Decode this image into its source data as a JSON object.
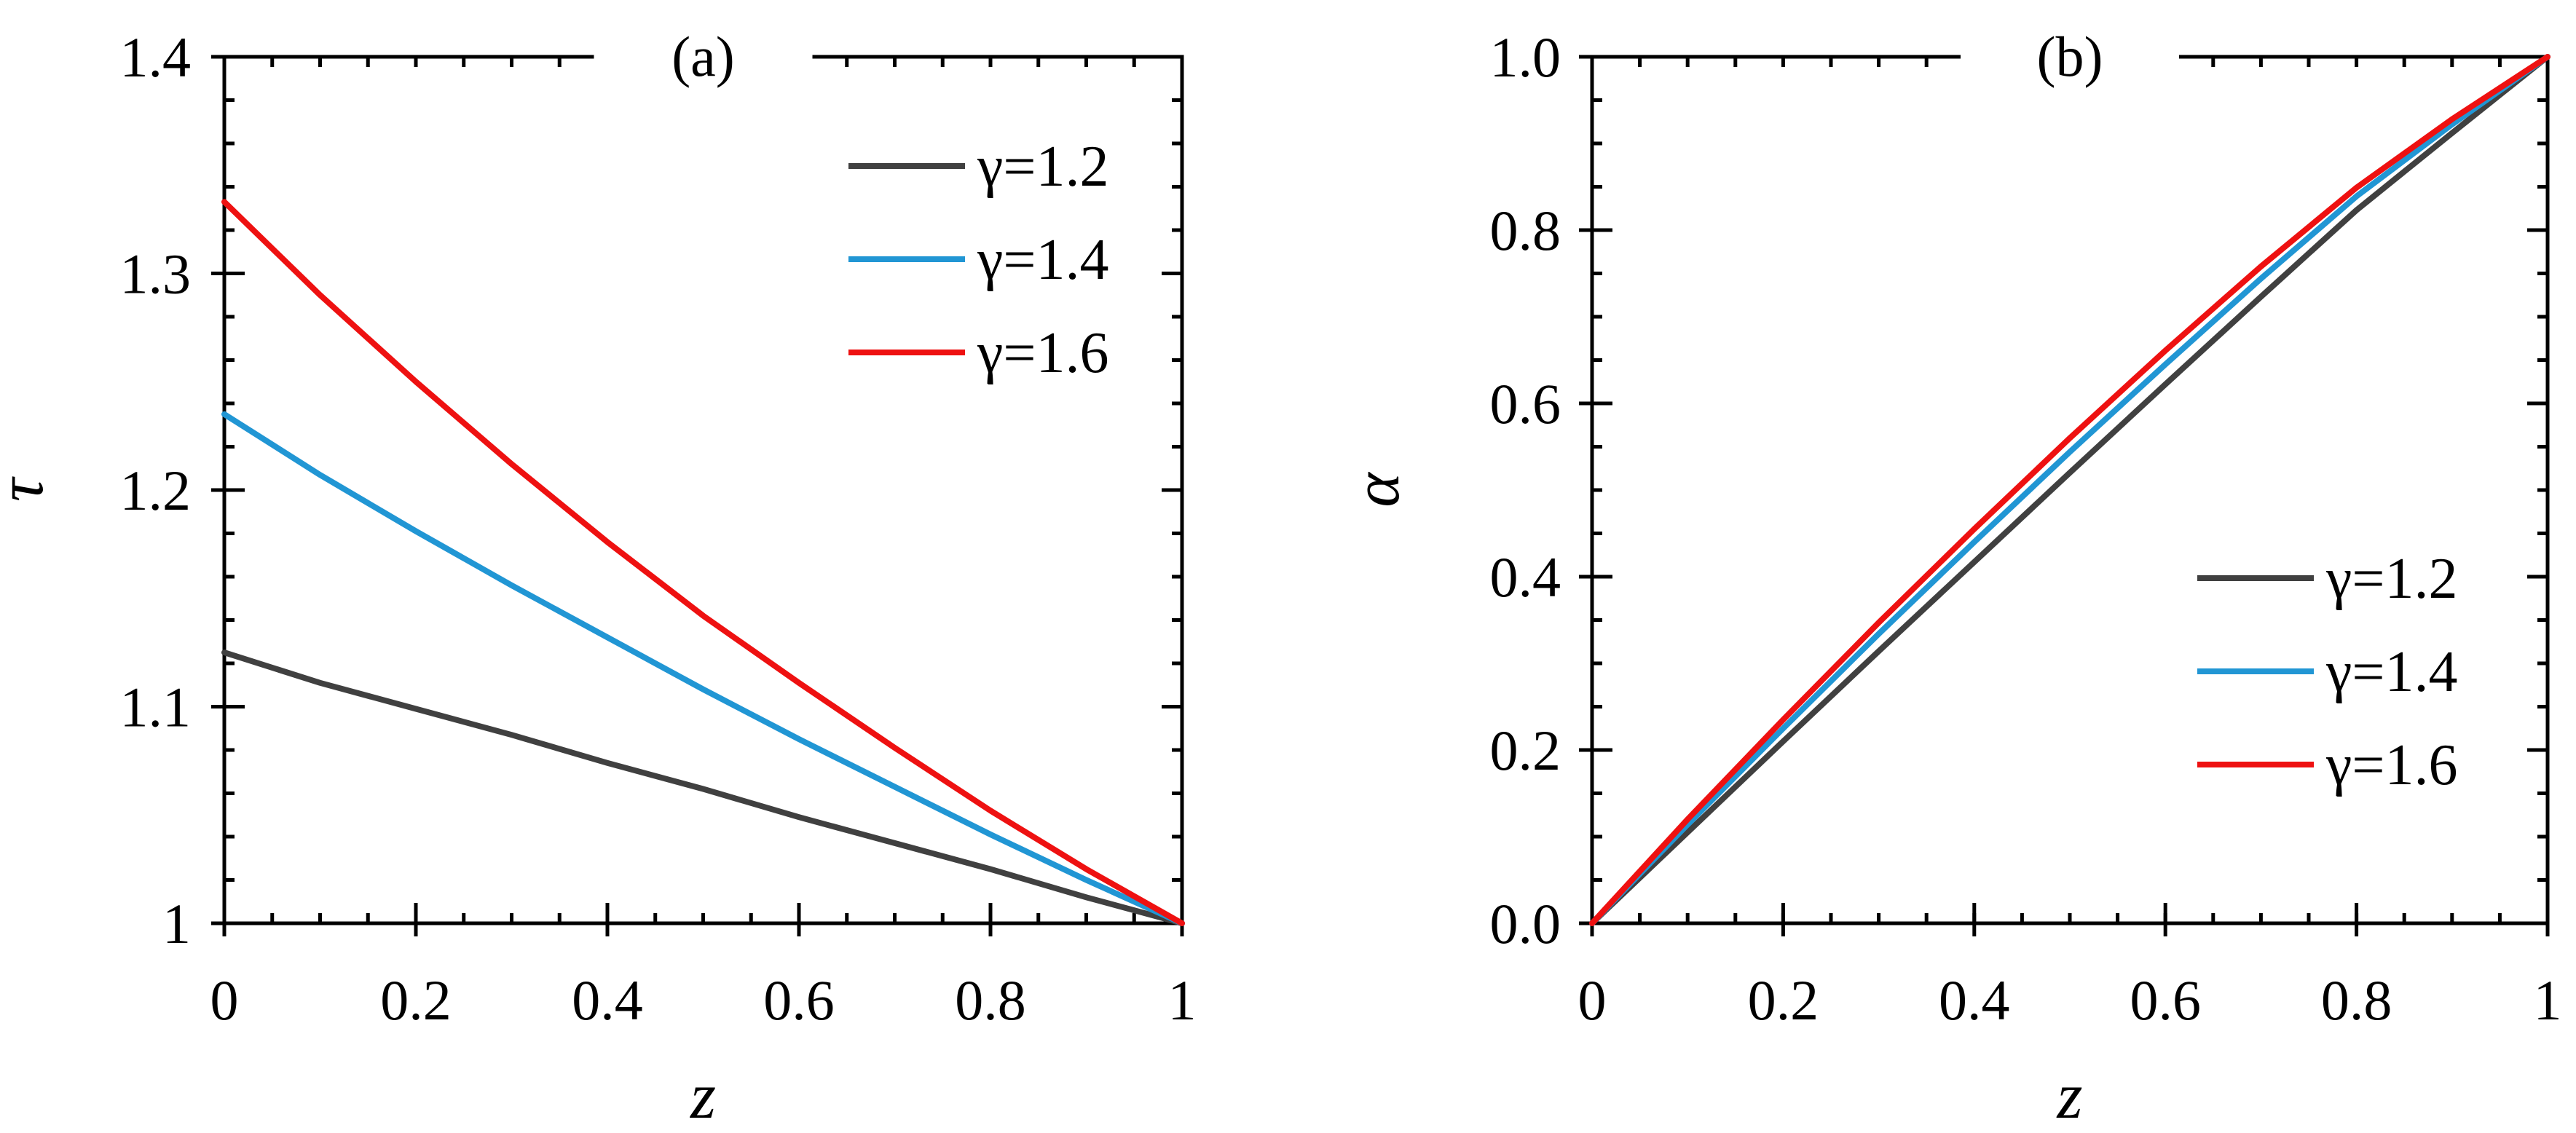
{
  "colors": {
    "gamma_1_2": "#404040",
    "gamma_1_4": "#2196d4",
    "gamma_1_6": "#ee1111",
    "axes": "#000000",
    "background": "#ffffff"
  },
  "chart_data": [
    {
      "type": "line",
      "panel_label": "(a)",
      "xlabel": "z",
      "ylabel": "τ",
      "xlim": [
        0,
        1
      ],
      "ylim": [
        1,
        1.4
      ],
      "x_ticks": [
        "0",
        "0.2",
        "0.4",
        "0.6",
        "0.8",
        "1"
      ],
      "y_ticks": [
        "1",
        "1.1",
        "1.2",
        "1.3",
        "1.4"
      ],
      "legend_position": "top-right",
      "grid": false,
      "series": [
        {
          "name": "γ=1.2",
          "color_key": "gamma_1_2",
          "x": [
            0,
            0.1,
            0.2,
            0.3,
            0.4,
            0.5,
            0.6,
            0.7,
            0.8,
            0.9,
            1
          ],
          "y": [
            1.125,
            1.111,
            1.099,
            1.087,
            1.074,
            1.062,
            1.049,
            1.037,
            1.025,
            1.012,
            1.0
          ]
        },
        {
          "name": "γ=1.4",
          "color_key": "gamma_1_4",
          "x": [
            0,
            0.1,
            0.2,
            0.3,
            0.4,
            0.5,
            0.6,
            0.7,
            0.8,
            0.9,
            1
          ],
          "y": [
            1.235,
            1.207,
            1.181,
            1.156,
            1.132,
            1.108,
            1.085,
            1.063,
            1.041,
            1.02,
            1.0
          ]
        },
        {
          "name": "γ=1.6",
          "color_key": "gamma_1_6",
          "x": [
            0,
            0.1,
            0.2,
            0.3,
            0.4,
            0.5,
            0.6,
            0.7,
            0.8,
            0.9,
            1
          ],
          "y": [
            1.333,
            1.29,
            1.25,
            1.212,
            1.176,
            1.142,
            1.111,
            1.081,
            1.052,
            1.025,
            1.0
          ]
        }
      ]
    },
    {
      "type": "line",
      "panel_label": "(b)",
      "xlabel": "z",
      "ylabel": "α",
      "xlim": [
        0,
        1
      ],
      "ylim": [
        0,
        1
      ],
      "x_ticks": [
        "0",
        "0.2",
        "0.4",
        "0.6",
        "0.8",
        "1"
      ],
      "y_ticks": [
        "0.0",
        "0.2",
        "0.4",
        "0.6",
        "0.8",
        "1.0"
      ],
      "legend_position": "bottom-right",
      "grid": false,
      "series": [
        {
          "name": "γ=1.2",
          "color_key": "gamma_1_2",
          "x": [
            0,
            0.1,
            0.2,
            0.3,
            0.4,
            0.5,
            0.6,
            0.7,
            0.8,
            0.9,
            1
          ],
          "y": [
            0,
            0.105,
            0.21,
            0.314,
            0.417,
            0.52,
            0.622,
            0.723,
            0.823,
            0.912,
            1.0
          ]
        },
        {
          "name": "γ=1.4",
          "color_key": "gamma_1_4",
          "x": [
            0,
            0.1,
            0.2,
            0.3,
            0.4,
            0.5,
            0.6,
            0.7,
            0.8,
            0.9,
            1
          ],
          "y": [
            0,
            0.114,
            0.225,
            0.334,
            0.44,
            0.544,
            0.645,
            0.744,
            0.839,
            0.922,
            1.0
          ]
        },
        {
          "name": "γ=1.6",
          "color_key": "gamma_1_6",
          "x": [
            0,
            0.1,
            0.2,
            0.3,
            0.4,
            0.5,
            0.6,
            0.7,
            0.8,
            0.9,
            1
          ],
          "y": [
            0,
            0.12,
            0.235,
            0.347,
            0.455,
            0.56,
            0.661,
            0.758,
            0.849,
            0.928,
            1.0
          ]
        }
      ]
    }
  ]
}
